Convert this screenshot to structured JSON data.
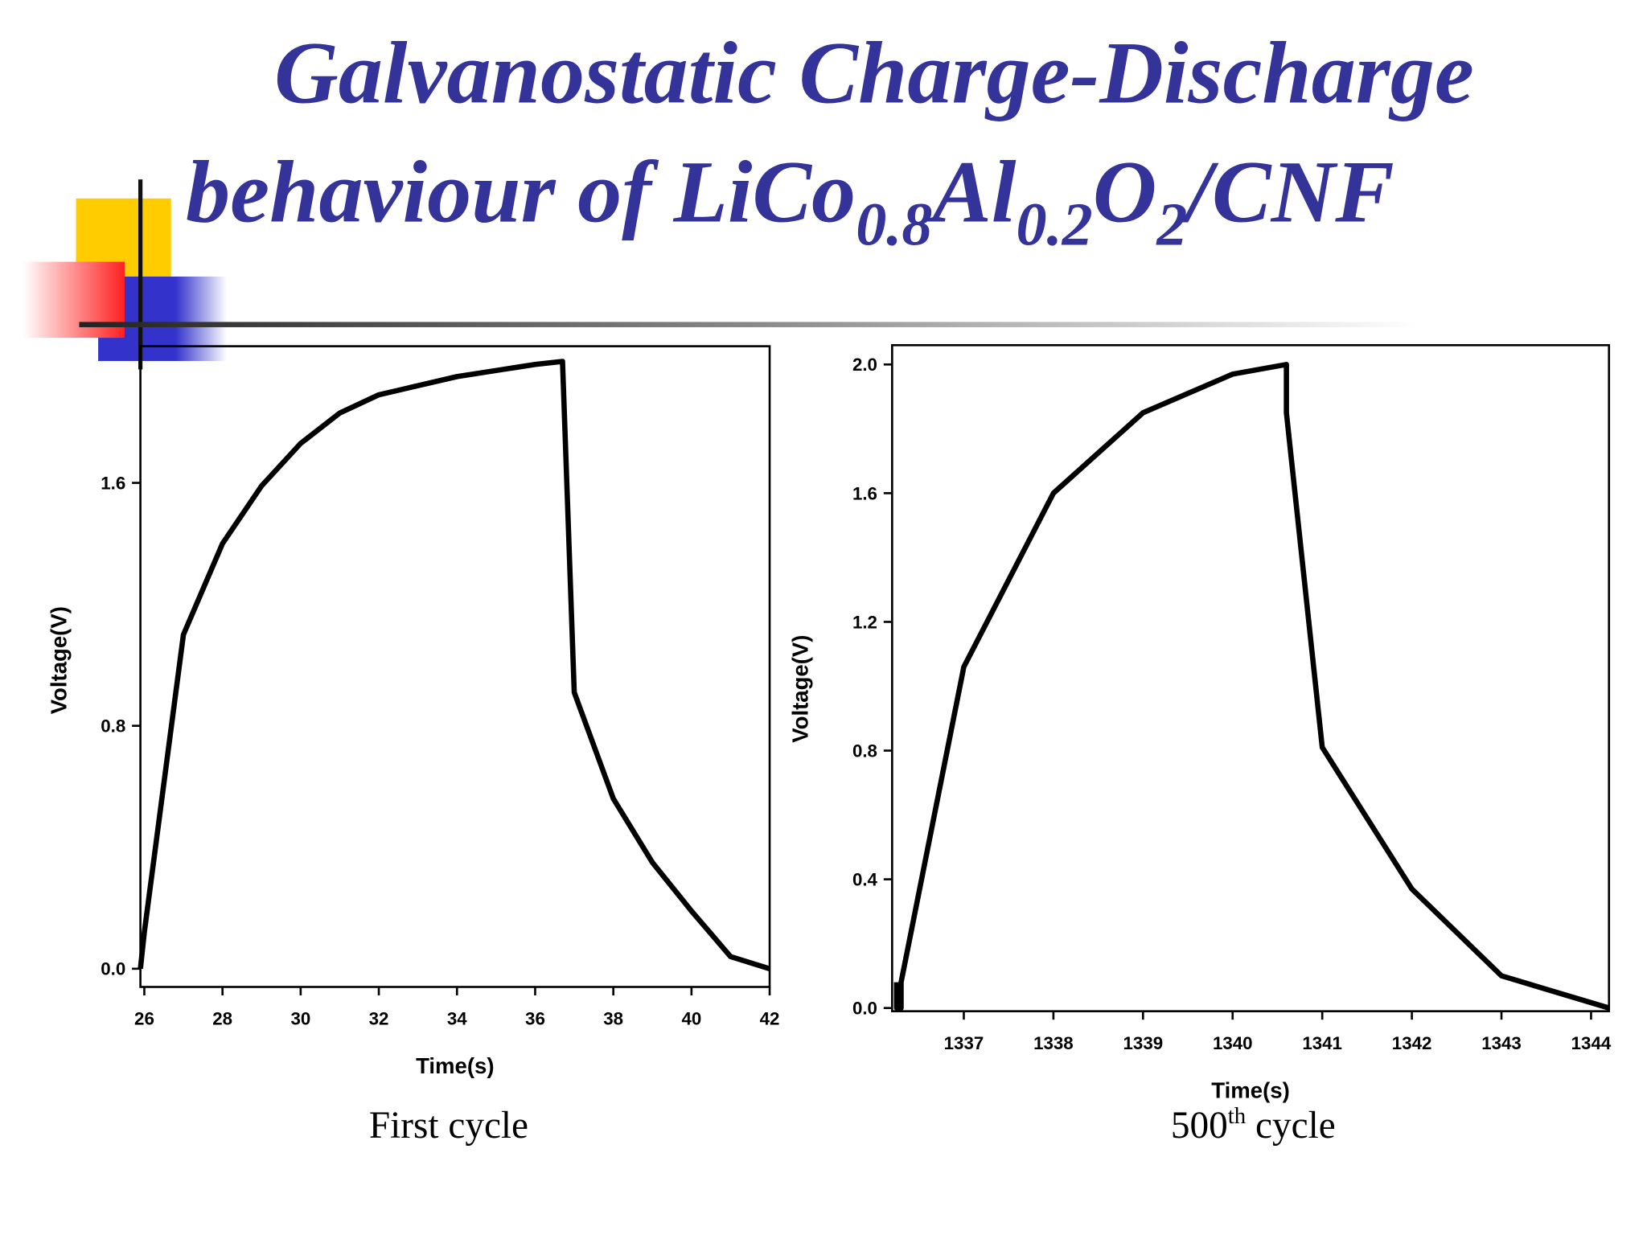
{
  "title": {
    "line1": "Galvanostatic Charge-Discharge",
    "line2": [
      "behaviour of LiCo",
      "0.8",
      "Al",
      "0.2",
      "O",
      "2",
      "/CNF"
    ]
  },
  "captions": {
    "first": "First cycle",
    "second": [
      "500",
      "th",
      " cycle"
    ]
  },
  "chart_data": [
    {
      "type": "line",
      "xlabel": "Time(s)",
      "ylabel": "Voltage(V)",
      "color": "#000000",
      "x": [
        25.9,
        26,
        27,
        28,
        29,
        30,
        31,
        32,
        33,
        34,
        35,
        36,
        36.7,
        37,
        38,
        39,
        40,
        41,
        42
      ],
      "values": [
        0,
        0.12,
        1.1,
        1.4,
        1.59,
        1.73,
        1.83,
        1.89,
        1.92,
        1.95,
        1.97,
        1.99,
        2.0,
        0.91,
        0.56,
        0.35,
        0.19,
        0.04,
        0
      ],
      "xlim": [
        25.9,
        42
      ],
      "ylim": [
        -0.06,
        2.05
      ],
      "xticks": [
        26,
        28,
        30,
        32,
        34,
        36,
        38,
        40,
        42
      ],
      "yticks": [
        {
          "value": 0,
          "label": "0.0"
        },
        0.8,
        1.6
      ]
    },
    {
      "type": "line",
      "xlabel": "Time(s)",
      "ylabel": "Voltage(V)",
      "color": "#000000",
      "x": [
        1336.25,
        1336.25,
        1336.3,
        1336.3,
        1337,
        1338,
        1339,
        1340,
        1340.6,
        1340.6,
        1341,
        1342,
        1343,
        1344.2
      ],
      "values": [
        0.08,
        0,
        0,
        0.08,
        1.06,
        1.6,
        1.85,
        1.97,
        2.0,
        1.85,
        0.81,
        0.37,
        0.1,
        0
      ],
      "xlim": [
        1336.2,
        1344.2
      ],
      "ylim": [
        -0.01,
        2.06
      ],
      "xticks": [
        1337,
        1338,
        1339,
        1340,
        1341,
        1342,
        1343,
        1344
      ],
      "yticks": [
        {
          "value": 0,
          "label": "0.0"
        },
        0.4,
        0.8,
        1.2,
        1.6,
        {
          "value": 2,
          "label": "2.0"
        }
      ]
    }
  ]
}
